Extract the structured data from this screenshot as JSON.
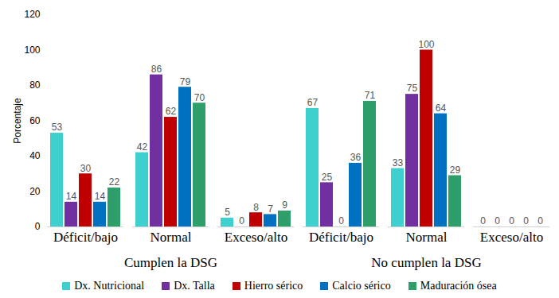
{
  "chart_data": {
    "type": "bar",
    "categories": [
      "Déficit/bajo",
      "Normal",
      "Exceso/alto",
      "Déficit/bajo",
      "Normal",
      "Exceso/alto"
    ],
    "groups": [
      "Cumplen la DSG",
      "Cumplen la DSG",
      "Cumplen la DSG",
      "No cumplen la DSG",
      "No cumplen la DSG",
      "No cumplen la DSG"
    ],
    "y_label": "Porcentaje",
    "ylim": [
      0,
      120
    ],
    "yticks": [
      0,
      20,
      40,
      60,
      80,
      100,
      120
    ],
    "grid": false,
    "data_labels": true,
    "legend": "bottom",
    "series": [
      {
        "name": "Dx. Nutricional",
        "color": "#3ECFCF",
        "values": [
          53,
          42,
          5,
          67,
          33,
          0
        ]
      },
      {
        "name": "Dx. Talla",
        "color": "#7030A0",
        "values": [
          14,
          86,
          0,
          25,
          75,
          0
        ]
      },
      {
        "name": "Hierro sérico",
        "color": "#C00000",
        "values": [
          30,
          62,
          8,
          0,
          100,
          0
        ]
      },
      {
        "name": "Calcio sérico",
        "color": "#0070C0",
        "values": [
          14,
          79,
          7,
          36,
          64,
          0
        ]
      },
      {
        "name": "Maduración ósea",
        "color": "#2E9E6B",
        "values": [
          22,
          70,
          9,
          71,
          29,
          0
        ]
      }
    ]
  }
}
